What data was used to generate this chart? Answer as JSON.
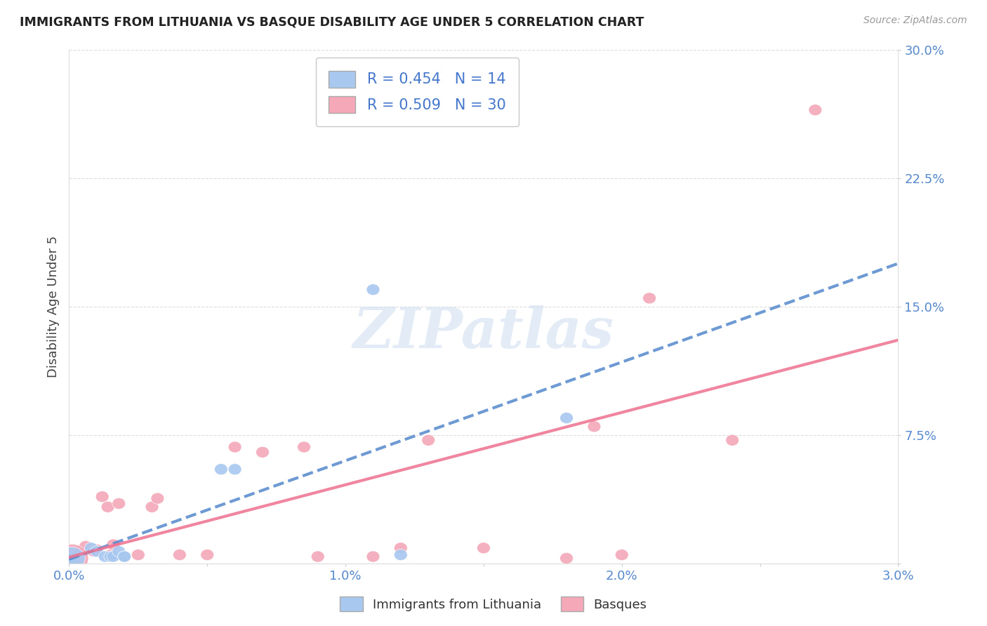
{
  "title": "IMMIGRANTS FROM LITHUANIA VS BASQUE DISABILITY AGE UNDER 5 CORRELATION CHART",
  "source": "Source: ZipAtlas.com",
  "ylabel": "Disability Age Under 5",
  "xlim": [
    0.0,
    0.03
  ],
  "ylim": [
    0.0,
    0.3
  ],
  "xticks": [
    0.0,
    0.005,
    0.01,
    0.015,
    0.02,
    0.025,
    0.03
  ],
  "yticks": [
    0.0,
    0.075,
    0.15,
    0.225,
    0.3
  ],
  "xtick_labels": [
    "0.0%",
    "",
    "1.0%",
    "",
    "2.0%",
    "",
    "3.0%"
  ],
  "ytick_labels": [
    "",
    "7.5%",
    "15.0%",
    "22.5%",
    "30.0%"
  ],
  "blue_R": "R = 0.454",
  "blue_N": "N = 14",
  "pink_R": "R = 0.509",
  "pink_N": "N = 30",
  "legend_label_blue": "Immigrants from Lithuania",
  "legend_label_pink": "Basques",
  "blue_color": "#A8C8F0",
  "pink_color": "#F4A8B8",
  "blue_line_color": "#5588CC",
  "pink_line_color": "#EE7090",
  "watermark_text": "ZIPatlas",
  "blue_points_x": [
    0.0001,
    0.0008,
    0.001,
    0.0013,
    0.0015,
    0.0016,
    0.0018,
    0.002,
    0.002,
    0.0055,
    0.006,
    0.011,
    0.012,
    0.018
  ],
  "blue_points_y": [
    0.003,
    0.009,
    0.007,
    0.004,
    0.004,
    0.004,
    0.007,
    0.004,
    0.004,
    0.055,
    0.055,
    0.16,
    0.005,
    0.085
  ],
  "pink_points_x": [
    0.0,
    0.0004,
    0.0006,
    0.0009,
    0.001,
    0.0012,
    0.0014,
    0.0015,
    0.0016,
    0.0018,
    0.002,
    0.0025,
    0.003,
    0.0032,
    0.004,
    0.005,
    0.006,
    0.007,
    0.0085,
    0.009,
    0.011,
    0.012,
    0.013,
    0.015,
    0.018,
    0.019,
    0.02,
    0.021,
    0.024,
    0.027
  ],
  "pink_points_y": [
    0.003,
    0.007,
    0.01,
    0.007,
    0.008,
    0.039,
    0.033,
    0.005,
    0.011,
    0.035,
    0.004,
    0.005,
    0.033,
    0.038,
    0.005,
    0.005,
    0.068,
    0.065,
    0.068,
    0.004,
    0.004,
    0.009,
    0.072,
    0.009,
    0.003,
    0.08,
    0.005,
    0.155,
    0.072,
    0.265
  ],
  "background_color": "#ffffff",
  "grid_color": "#dddddd",
  "blue_line_intercept": 0.003,
  "blue_line_slope": 4.2,
  "pink_line_intercept": 0.002,
  "pink_line_slope": 4.0
}
